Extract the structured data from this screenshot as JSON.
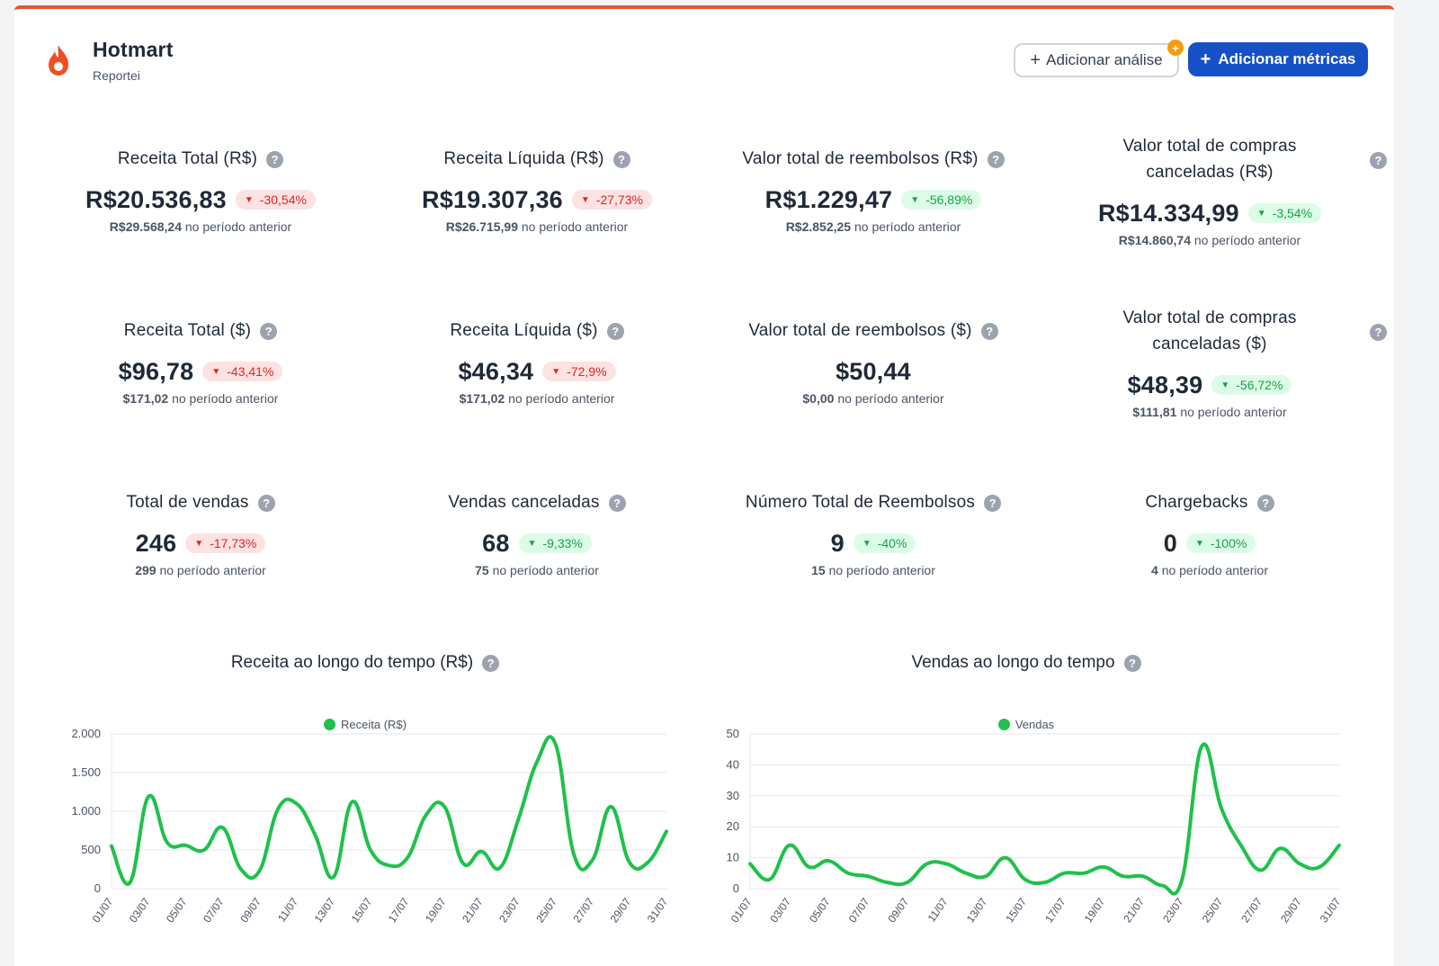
{
  "header": {
    "title": "Hotmart",
    "subtitle": "Reportei",
    "add_analysis_label": "Adicionar análise",
    "add_metrics_label": "Adicionar métricas",
    "badge_symbol": "+"
  },
  "help_symbol": "?",
  "metrics": [
    {
      "title": "Receita Total (R$)",
      "value": "R$20.536,83",
      "delta": "-30,54%",
      "delta_kind": "neg",
      "prev_value": "R$29.568,24",
      "prev_text": "no período anterior"
    },
    {
      "title": "Receita Líquida (R$)",
      "value": "R$19.307,36",
      "delta": "-27,73%",
      "delta_kind": "neg",
      "prev_value": "R$26.715,99",
      "prev_text": "no período anterior"
    },
    {
      "title": "Valor total de reembolsos (R$)",
      "value": "R$1.229,47",
      "delta": "-56,89%",
      "delta_kind": "pos",
      "prev_value": "R$2.852,25",
      "prev_text": "no período anterior"
    },
    {
      "title": "Valor total de compras canceladas (R$)",
      "value": "R$14.334,99",
      "delta": "-3,54%",
      "delta_kind": "pos",
      "prev_value": "R$14.860,74",
      "prev_text": "no período anterior"
    },
    {
      "title": "Receita Total ($)",
      "value": "$96,78",
      "delta": "-43,41%",
      "delta_kind": "neg",
      "prev_value": "$171,02",
      "prev_text": "no período anterior"
    },
    {
      "title": "Receita Líquida ($)",
      "value": "$46,34",
      "delta": "-72,9%",
      "delta_kind": "neg",
      "prev_value": "$171,02",
      "prev_text": "no período anterior"
    },
    {
      "title": "Valor total de reembolsos ($)",
      "value": "$50,44",
      "delta": "",
      "delta_kind": "none",
      "prev_value": "$0,00",
      "prev_text": "no período anterior"
    },
    {
      "title": "Valor total de compras canceladas ($)",
      "value": "$48,39",
      "delta": "-56,72%",
      "delta_kind": "pos",
      "prev_value": "$111,81",
      "prev_text": "no período anterior"
    },
    {
      "title": "Total de vendas",
      "value": "246",
      "delta": "-17,73%",
      "delta_kind": "neg",
      "prev_value": "299",
      "prev_text": "no período anterior"
    },
    {
      "title": "Vendas canceladas",
      "value": "68",
      "delta": "-9,33%",
      "delta_kind": "pos",
      "prev_value": "75",
      "prev_text": "no período anterior"
    },
    {
      "title": "Número Total de Reembolsos",
      "value": "9",
      "delta": "-40%",
      "delta_kind": "pos",
      "prev_value": "15",
      "prev_text": "no período anterior"
    },
    {
      "title": "Chargebacks",
      "value": "0",
      "delta": "-100%",
      "delta_kind": "pos",
      "prev_value": "4",
      "prev_text": "no período anterior"
    }
  ],
  "chart_data": [
    {
      "type": "line",
      "title": "Receita ao longo do tempo (R$)",
      "legend": "Receita (R$)",
      "color": "#1ec14b",
      "ylim": [
        0,
        2000
      ],
      "yticks": [
        0,
        500,
        1000,
        1500,
        2000
      ],
      "ytick_labels": [
        "0",
        "500",
        "1.000",
        "1.500",
        "2.000"
      ],
      "x": [
        "01/07",
        "02/07",
        "03/07",
        "04/07",
        "05/07",
        "06/07",
        "07/07",
        "08/07",
        "09/07",
        "10/07",
        "11/07",
        "12/07",
        "13/07",
        "14/07",
        "15/07",
        "16/07",
        "17/07",
        "18/07",
        "19/07",
        "20/07",
        "21/07",
        "22/07",
        "23/07",
        "24/07",
        "25/07",
        "26/07",
        "27/07",
        "28/07",
        "29/07",
        "30/07",
        "31/07"
      ],
      "xtick_labels": [
        "01/07",
        "03/07",
        "05/07",
        "07/07",
        "09/07",
        "11/07",
        "13/07",
        "15/07",
        "17/07",
        "19/07",
        "21/07",
        "23/07",
        "25/07",
        "27/07",
        "29/07",
        "31/07"
      ],
      "values": [
        550,
        80,
        1190,
        600,
        560,
        500,
        790,
        250,
        230,
        1030,
        1100,
        700,
        150,
        1120,
        500,
        300,
        400,
        950,
        1060,
        330,
        480,
        270,
        900,
        1640,
        1870,
        440,
        370,
        1060,
        340,
        340,
        740
      ]
    },
    {
      "type": "line",
      "title": "Vendas ao longo do tempo",
      "legend": "Vendas",
      "color": "#1ec14b",
      "ylim": [
        0,
        50
      ],
      "yticks": [
        0,
        10,
        20,
        30,
        40,
        50
      ],
      "ytick_labels": [
        "0",
        "10",
        "20",
        "30",
        "40",
        "50"
      ],
      "x": [
        "01/07",
        "02/07",
        "03/07",
        "04/07",
        "05/07",
        "06/07",
        "07/07",
        "08/07",
        "09/07",
        "10/07",
        "11/07",
        "12/07",
        "13/07",
        "14/07",
        "15/07",
        "16/07",
        "17/07",
        "18/07",
        "19/07",
        "20/07",
        "21/07",
        "22/07",
        "23/07",
        "24/07",
        "25/07",
        "26/07",
        "27/07",
        "28/07",
        "29/07",
        "30/07",
        "31/07"
      ],
      "xtick_labels": [
        "01/07",
        "03/07",
        "05/07",
        "07/07",
        "09/07",
        "11/07",
        "13/07",
        "15/07",
        "17/07",
        "19/07",
        "21/07",
        "23/07",
        "25/07",
        "27/07",
        "29/07",
        "31/07"
      ],
      "values": [
        8,
        3,
        14,
        7,
        9,
        5,
        4,
        2,
        2,
        8,
        8,
        5,
        4,
        10,
        3,
        2,
        5,
        5,
        7,
        4,
        4,
        1,
        3,
        46,
        26,
        14,
        6,
        13,
        8,
        7,
        14
      ]
    }
  ]
}
